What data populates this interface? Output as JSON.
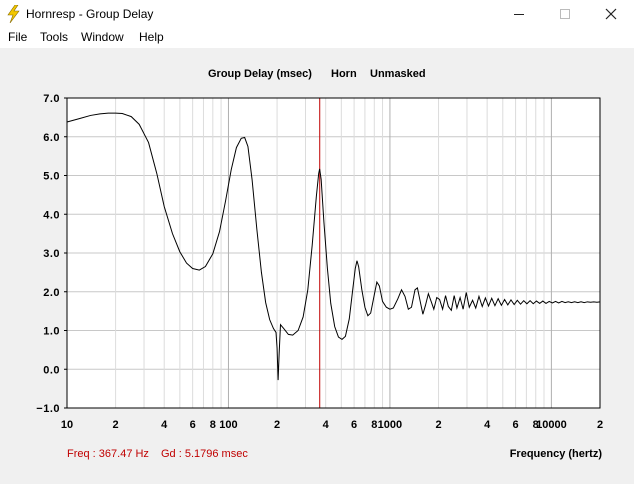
{
  "window": {
    "title": "Hornresp - Group Delay",
    "icon": "lightning-bolt-icon",
    "controls": [
      "minimize-icon",
      "maximize-icon",
      "close-icon"
    ]
  },
  "menu": [
    "File",
    "Tools",
    "Window",
    "Help"
  ],
  "status": {
    "freq_readout": "Freq : 367.47 Hz",
    "gd_readout": "Gd : 5.1796 msec"
  },
  "colors": {
    "curve": "#000000",
    "cursor": "#c00000",
    "grid": "#c8c8c8",
    "readout": "#c00000"
  },
  "chart_data": {
    "type": "line",
    "title_parts": [
      "Group Delay (msec)",
      "Horn",
      "Unmasked"
    ],
    "xlabel": "Frequency (hertz)",
    "ylabel": "",
    "x_scale": "log",
    "xlim": [
      10,
      20000
    ],
    "ylim": [
      -1,
      7
    ],
    "grid": true,
    "y_ticks": [
      "7.0",
      "6.0",
      "5.0",
      "4.0",
      "3.0",
      "2.0",
      "1.0",
      "0.0",
      "−1.0"
    ],
    "x_ticks": [
      {
        "value": 10,
        "label": "10"
      },
      {
        "value": 20,
        "label": "2"
      },
      {
        "value": 40,
        "label": "4"
      },
      {
        "value": 60,
        "label": "6"
      },
      {
        "value": 80,
        "label": "8"
      },
      {
        "value": 100,
        "label": "100"
      },
      {
        "value": 200,
        "label": "2"
      },
      {
        "value": 400,
        "label": "4"
      },
      {
        "value": 600,
        "label": "6"
      },
      {
        "value": 800,
        "label": "8"
      },
      {
        "value": 1000,
        "label": "1000"
      },
      {
        "value": 2000,
        "label": "2"
      },
      {
        "value": 4000,
        "label": "4"
      },
      {
        "value": 6000,
        "label": "6"
      },
      {
        "value": 8000,
        "label": "8"
      },
      {
        "value": 10000,
        "label": "10000"
      },
      {
        "value": 20000,
        "label": "2"
      }
    ],
    "cursor_x": 367.47,
    "series": [
      {
        "points": [
          [
            10,
            6.38
          ],
          [
            12,
            6.47
          ],
          [
            14,
            6.55
          ],
          [
            16,
            6.59
          ],
          [
            18,
            6.61
          ],
          [
            20,
            6.61
          ],
          [
            22,
            6.6
          ],
          [
            25,
            6.52
          ],
          [
            28,
            6.32
          ],
          [
            32,
            5.85
          ],
          [
            36,
            5.05
          ],
          [
            40,
            4.2
          ],
          [
            45,
            3.5
          ],
          [
            50,
            3.03
          ],
          [
            55,
            2.74
          ],
          [
            60,
            2.6
          ],
          [
            66,
            2.56
          ],
          [
            72,
            2.65
          ],
          [
            80,
            2.98
          ],
          [
            88,
            3.55
          ],
          [
            96,
            4.35
          ],
          [
            104,
            5.15
          ],
          [
            112,
            5.72
          ],
          [
            120,
            5.96
          ],
          [
            126,
            5.98
          ],
          [
            132,
            5.75
          ],
          [
            140,
            4.9
          ],
          [
            150,
            3.6
          ],
          [
            160,
            2.5
          ],
          [
            170,
            1.72
          ],
          [
            180,
            1.28
          ],
          [
            190,
            1.05
          ],
          [
            197,
            0.95
          ],
          [
            200,
            0.55
          ],
          [
            203,
            -0.28
          ],
          [
            206,
            0.4
          ],
          [
            210,
            1.15
          ],
          [
            220,
            1.05
          ],
          [
            235,
            0.9
          ],
          [
            250,
            0.88
          ],
          [
            270,
            1.0
          ],
          [
            290,
            1.35
          ],
          [
            310,
            2.05
          ],
          [
            330,
            3.2
          ],
          [
            350,
            4.45
          ],
          [
            362,
            5.05
          ],
          [
            367,
            5.17
          ],
          [
            375,
            4.9
          ],
          [
            390,
            3.8
          ],
          [
            410,
            2.6
          ],
          [
            430,
            1.7
          ],
          [
            455,
            1.1
          ],
          [
            480,
            0.83
          ],
          [
            505,
            0.77
          ],
          [
            530,
            0.85
          ],
          [
            560,
            1.3
          ],
          [
            590,
            2.1
          ],
          [
            610,
            2.6
          ],
          [
            625,
            2.8
          ],
          [
            640,
            2.65
          ],
          [
            670,
            2.05
          ],
          [
            700,
            1.6
          ],
          [
            730,
            1.38
          ],
          [
            760,
            1.45
          ],
          [
            800,
            1.92
          ],
          [
            830,
            2.25
          ],
          [
            860,
            2.15
          ],
          [
            900,
            1.75
          ],
          [
            950,
            1.6
          ],
          [
            1000,
            1.55
          ],
          [
            1050,
            1.58
          ],
          [
            1120,
            1.82
          ],
          [
            1180,
            2.05
          ],
          [
            1240,
            1.88
          ],
          [
            1300,
            1.55
          ],
          [
            1360,
            1.6
          ],
          [
            1430,
            2.05
          ],
          [
            1480,
            2.1
          ],
          [
            1540,
            1.75
          ],
          [
            1600,
            1.42
          ],
          [
            1660,
            1.65
          ],
          [
            1730,
            1.95
          ],
          [
            1800,
            1.75
          ],
          [
            1870,
            1.55
          ],
          [
            1950,
            1.85
          ],
          [
            2030,
            1.8
          ],
          [
            2120,
            1.55
          ],
          [
            2210,
            1.9
          ],
          [
            2300,
            1.62
          ],
          [
            2400,
            1.52
          ],
          [
            2500,
            1.9
          ],
          [
            2600,
            1.58
          ],
          [
            2720,
            1.85
          ],
          [
            2840,
            1.55
          ],
          [
            2970,
            1.98
          ],
          [
            3100,
            1.6
          ],
          [
            3250,
            1.78
          ],
          [
            3400,
            1.58
          ],
          [
            3560,
            1.88
          ],
          [
            3730,
            1.62
          ],
          [
            3900,
            1.84
          ],
          [
            4080,
            1.63
          ],
          [
            4270,
            1.83
          ],
          [
            4470,
            1.64
          ],
          [
            4680,
            1.82
          ],
          [
            4900,
            1.65
          ],
          [
            5130,
            1.8
          ],
          [
            5370,
            1.66
          ],
          [
            5620,
            1.79
          ],
          [
            5880,
            1.67
          ],
          [
            6150,
            1.78
          ],
          [
            6440,
            1.68
          ],
          [
            6740,
            1.77
          ],
          [
            7050,
            1.69
          ],
          [
            7380,
            1.77
          ],
          [
            7720,
            1.69
          ],
          [
            8080,
            1.76
          ],
          [
            8460,
            1.7
          ],
          [
            8850,
            1.76
          ],
          [
            9260,
            1.7
          ],
          [
            9690,
            1.75
          ],
          [
            10140,
            1.71
          ],
          [
            10610,
            1.75
          ],
          [
            11100,
            1.71
          ],
          [
            11620,
            1.75
          ],
          [
            12160,
            1.72
          ],
          [
            12720,
            1.74
          ],
          [
            13310,
            1.72
          ],
          [
            13930,
            1.74
          ],
          [
            14580,
            1.72
          ],
          [
            15260,
            1.74
          ],
          [
            15970,
            1.72
          ],
          [
            16710,
            1.74
          ],
          [
            17490,
            1.73
          ],
          [
            18300,
            1.74
          ],
          [
            19150,
            1.73
          ],
          [
            20000,
            1.74
          ]
        ]
      }
    ]
  }
}
